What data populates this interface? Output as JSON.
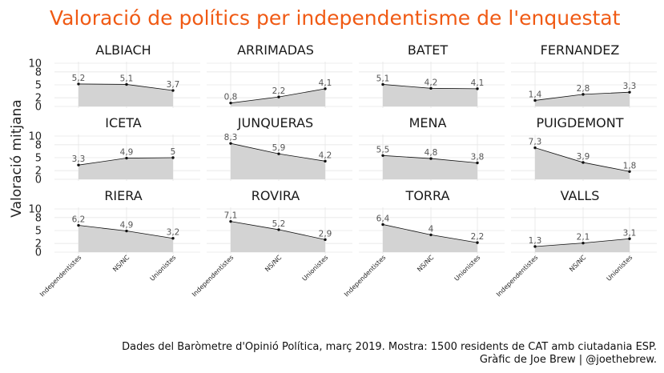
{
  "title": "Valoració de polítics per independentisme de l'enquestat",
  "caption_line1": "Dades del Baròmetre d'Opinió Política, març 2019. Mostra: 1500 residents de CAT amb ciutadania ESP.",
  "caption_line2": "Gràfic de Joe Brew | @joethebrew.",
  "colors": {
    "title": "#f05a14",
    "area": "#d3d3d3",
    "line": "#111111",
    "grid": "#e6e6e6"
  },
  "chart_data": {
    "type": "area",
    "ylabel": "Valoració mitjana",
    "xlabel": "",
    "categories": [
      "Independentistes",
      "NS/NC",
      "Unionistes"
    ],
    "ylim": [
      0,
      10
    ],
    "yticks": [
      "0",
      "2",
      "5",
      "8",
      "10"
    ],
    "grid": true,
    "facets": [
      {
        "name": "ALBIACH",
        "values": [
          5.2,
          5.1,
          3.7
        ],
        "labels": [
          "5,2",
          "5,1",
          "3,7"
        ]
      },
      {
        "name": "ARRIMADAS",
        "values": [
          0.8,
          2.2,
          4.1
        ],
        "labels": [
          "0,8",
          "2,2",
          "4,1"
        ]
      },
      {
        "name": "BATET",
        "values": [
          5.1,
          4.2,
          4.1
        ],
        "labels": [
          "5,1",
          "4,2",
          "4,1"
        ]
      },
      {
        "name": "FERNANDEZ",
        "values": [
          1.4,
          2.8,
          3.3
        ],
        "labels": [
          "1,4",
          "2,8",
          "3,3"
        ]
      },
      {
        "name": "ICETA",
        "values": [
          3.3,
          4.9,
          5.0
        ],
        "labels": [
          "3,3",
          "4,9",
          "5"
        ]
      },
      {
        "name": "JUNQUERAS",
        "values": [
          8.3,
          5.9,
          4.2
        ],
        "labels": [
          "8,3",
          "5,9",
          "4,2"
        ]
      },
      {
        "name": "MENA",
        "values": [
          5.5,
          4.8,
          3.8
        ],
        "labels": [
          "5,5",
          "4,8",
          "3,8"
        ]
      },
      {
        "name": "PUIGDEMONT",
        "values": [
          7.3,
          3.9,
          1.8
        ],
        "labels": [
          "7,3",
          "3,9",
          "1,8"
        ]
      },
      {
        "name": "RIERA",
        "values": [
          6.2,
          4.9,
          3.2
        ],
        "labels": [
          "6,2",
          "4,9",
          "3,2"
        ]
      },
      {
        "name": "ROVIRA",
        "values": [
          7.1,
          5.2,
          2.9
        ],
        "labels": [
          "7,1",
          "5,2",
          "2,9"
        ]
      },
      {
        "name": "TORRA",
        "values": [
          6.4,
          4.0,
          2.2
        ],
        "labels": [
          "6,4",
          "4",
          "2,2"
        ]
      },
      {
        "name": "VALLS",
        "values": [
          1.3,
          2.1,
          3.1
        ],
        "labels": [
          "1,3",
          "2,1",
          "3,1"
        ]
      }
    ]
  }
}
